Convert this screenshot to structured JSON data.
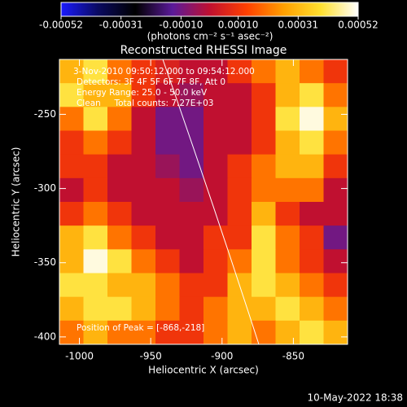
{
  "chart_data": {
    "type": "heatmap",
    "title": "Reconstructed RHESSI Image",
    "x_label": "Heliocentric X (arcsec)",
    "y_label": "Heliocentric Y (arcsec)",
    "colorbar_label": "(photons cm⁻² s⁻¹ asec⁻²)",
    "annotations": [
      "3-Nov-2010 09:50:12.000 to 09:54:12.000",
      "Detectors: 3F 4F 5F 6F 7F 8F, Att 0",
      "Energy Range: 25.0 - 50.0 keV",
      "Clean     Total counts: 7.27E+03"
    ],
    "peak_label": "Position of Peak = [-868,-218]",
    "footer": "10-May-2022 18:38",
    "xlim": [
      -1014,
      -812
    ],
    "xticks": [
      -1000,
      -950,
      -900,
      -850
    ],
    "ylim": [
      -405,
      -213
    ],
    "yticks": [
      -250,
      -300,
      -350,
      -400
    ],
    "clim": [
      -0.00052,
      0.00052
    ],
    "cticks": [
      -0.00052,
      -0.00031,
      {
        "value": -0.0001,
        "label": "-0.00010"
      },
      {
        "value": 0.0001,
        "label": "0.00010"
      },
      0.00031,
      0.00052
    ],
    "colormap": [
      "#1a1aff",
      "#0a0a60",
      "#000000",
      "#5a1a9a",
      "#c01030",
      "#ff4000",
      "#ffa000",
      "#ffe030",
      "#ffffff"
    ],
    "values": [
      [
        0.0003,
        0.0004,
        0.0002,
        0.0001,
        5e-05,
        0,
        0,
        0.0001,
        0.0002,
        0.0003,
        0.0002,
        0.0001
      ],
      [
        0.0004,
        0.0003,
        0.0003,
        0.0001,
        0,
        -5e-05,
        0,
        0,
        0.0001,
        0.0003,
        0.0004,
        0.0002
      ],
      [
        0.0002,
        0.0004,
        0.0002,
        0,
        -0.0001,
        -0.0001,
        0,
        0,
        0.0001,
        0.0004,
        0.0005,
        0.0003
      ],
      [
        0.0001,
        0.0002,
        0.0001,
        0,
        -0.0001,
        -0.0001,
        0,
        0,
        0.0001,
        0.0003,
        0.0004,
        0.0002
      ],
      [
        0.0001,
        0.0001,
        0,
        0,
        -5e-05,
        -0.0001,
        0,
        0.0001,
        0.0002,
        0.0003,
        0.0003,
        0.0001
      ],
      [
        0,
        0.0001,
        0,
        0,
        0,
        -5e-05,
        0,
        0.0001,
        0.0002,
        0.0002,
        0.0002,
        0
      ],
      [
        0.0001,
        0.0002,
        0.0001,
        0,
        0,
        0,
        0,
        0.0001,
        0.0003,
        0.0001,
        0,
        0
      ],
      [
        0.0003,
        0.0004,
        0.0002,
        0.0001,
        0,
        0,
        0.0001,
        0.0001,
        0.0004,
        0.0002,
        0.0001,
        -0.0001
      ],
      [
        0.0003,
        0.0005,
        0.0004,
        0.0002,
        0.0001,
        0,
        0.0001,
        0.0002,
        0.0004,
        0.0002,
        0.0001,
        0
      ],
      [
        0.0004,
        0.0004,
        0.0003,
        0.0003,
        0.0002,
        0.0001,
        0.0001,
        0.0003,
        0.0004,
        0.0003,
        0.0002,
        0.0001
      ],
      [
        0.0003,
        0.0004,
        0.0004,
        0.0003,
        0.0002,
        0.0001,
        0.0002,
        0.0003,
        0.0003,
        0.0004,
        0.0003,
        0.0002
      ],
      [
        0.0002,
        0.0003,
        0.0002,
        0.0002,
        0.0001,
        0.0001,
        0.0002,
        0.0003,
        0.0002,
        0.0003,
        0.0004,
        0.0003
      ]
    ]
  }
}
